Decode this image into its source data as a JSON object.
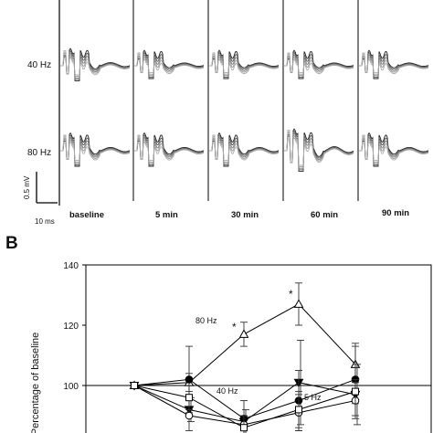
{
  "panel_a": {
    "row_labels": [
      "40 Hz",
      "80 Hz"
    ],
    "column_labels": [
      "baseline",
      "5 min",
      "30 min",
      "60 min",
      "90 min"
    ],
    "scale_bar": {
      "voltage": "0.5 mV",
      "time": "10 ms"
    }
  },
  "panel_b": {
    "letter": "B"
  },
  "chart_data": {
    "type": "line",
    "ylabel": "Percentage of baseline",
    "yticks": [
      100,
      120,
      140
    ],
    "ylim": [
      88,
      140
    ],
    "x": [
      0,
      1,
      2,
      3,
      4
    ],
    "grid": false,
    "reference_line": 100,
    "series": [
      {
        "name": "80 Hz",
        "marker": "open-triangle",
        "values": [
          100,
          101,
          117,
          127,
          107
        ],
        "errors": [
          0,
          3,
          4,
          7,
          6
        ],
        "significant": [
          false,
          false,
          true,
          true,
          false
        ]
      },
      {
        "name": "5 Hz",
        "marker": "filled-triangle-down",
        "values": [
          100,
          92,
          88,
          101,
          97
        ],
        "errors": [
          0,
          4,
          4,
          14,
          10
        ]
      },
      {
        "name": "",
        "marker": "filled-circle",
        "values": [
          100,
          102,
          89,
          95,
          102
        ],
        "errors": [
          0,
          11,
          6,
          10,
          12
        ]
      },
      {
        "name": "40 Hz",
        "marker": "open-circle",
        "values": [
          100,
          90,
          87,
          91,
          95
        ],
        "errors": [
          0,
          5,
          3,
          6,
          6
        ]
      },
      {
        "name": "",
        "marker": "open-square",
        "values": [
          100,
          96,
          86,
          92,
          98
        ],
        "errors": [
          0,
          4,
          4,
          6,
          4
        ]
      }
    ],
    "annotations": [
      "80 Hz",
      "40 Hz",
      "5 Hz",
      "*",
      "*"
    ]
  }
}
